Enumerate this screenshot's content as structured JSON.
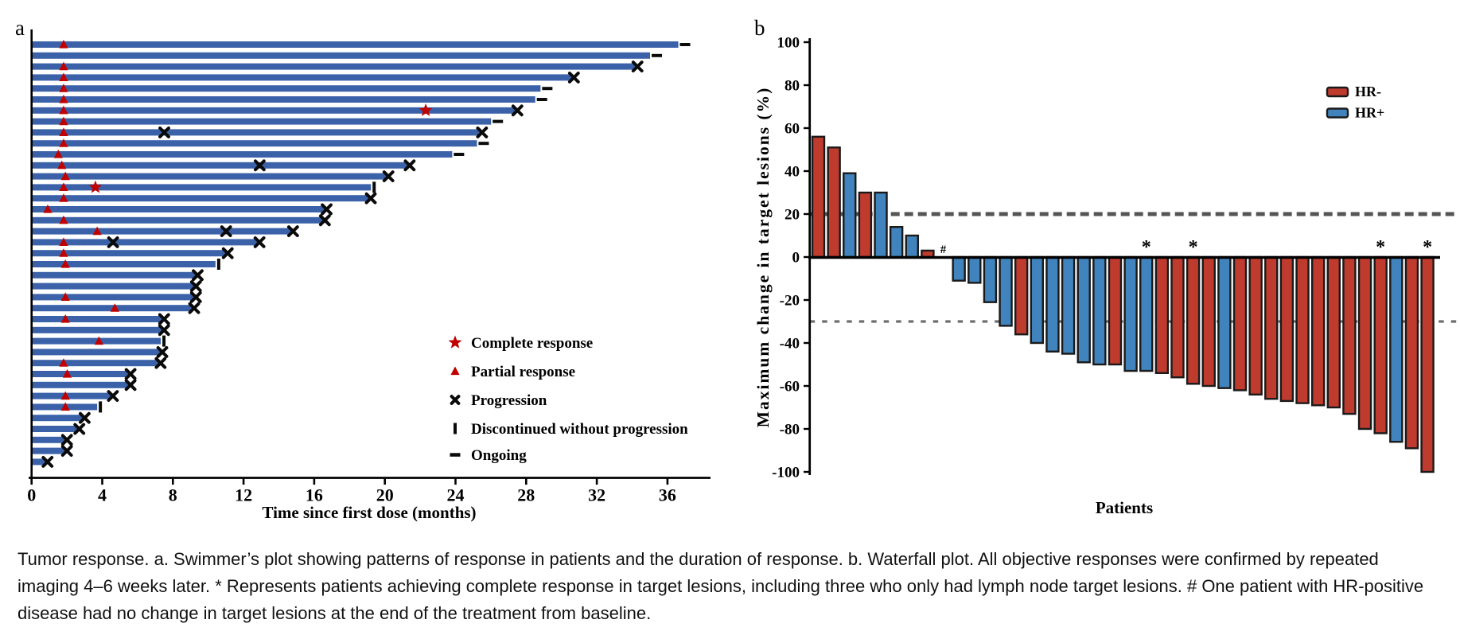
{
  "figure": {
    "panel_a_label": "a",
    "panel_b_label": "b",
    "caption": "Tumor response. a. Swimmer’s plot showing patterns of response in patients and the duration of response. b. Waterfall plot. All objective responses were confirmed by repeated imaging 4–6 weeks later. * Represents patients achieving complete response in target lesions, including three who only had lymph node target lesions. # One patient with HR-positive disease had no change in target lesions at the end of the treatment from baseline."
  },
  "colors": {
    "swimmer_bar": "#3B62A9",
    "marker_red": "#C00000",
    "marker_black": "#0A0A0A",
    "hr_negative": "#BE3B2E",
    "hr_positive": "#4183BC",
    "bar_outline": "#1A1A1A",
    "ref_line_upper": "#555555",
    "ref_line_lower": "#6E6E6E"
  },
  "chart_data": [
    {
      "type": "bar",
      "subtype": "swimmer",
      "orientation": "horizontal",
      "xlabel": "Time since first dose (months)",
      "xticks": [
        0,
        4,
        8,
        12,
        16,
        20,
        24,
        28,
        32,
        36
      ],
      "xlim": [
        0,
        38.5
      ],
      "legend": [
        {
          "symbol": "star",
          "label": "Complete response"
        },
        {
          "symbol": "triangle",
          "label": "Partial response"
        },
        {
          "symbol": "x",
          "label": "Progression"
        },
        {
          "symbol": "vbar",
          "label": "Discontinued without progression"
        },
        {
          "symbol": "dash",
          "label": "Ongoing"
        }
      ],
      "patients": [
        {
          "months": 36.6,
          "end": "ongoing",
          "events": [
            {
              "type": "PR",
              "month": 1.8
            }
          ]
        },
        {
          "months": 35.0,
          "end": "ongoing",
          "events": []
        },
        {
          "months": 34.2,
          "end": "PD",
          "events": [
            {
              "type": "PR",
              "month": 1.8
            }
          ]
        },
        {
          "months": 30.6,
          "end": "PD",
          "events": [
            {
              "type": "PR",
              "month": 1.8
            }
          ]
        },
        {
          "months": 28.8,
          "end": "ongoing",
          "events": [
            {
              "type": "PR",
              "month": 1.8
            }
          ]
        },
        {
          "months": 28.5,
          "end": "ongoing",
          "events": [
            {
              "type": "PR",
              "month": 1.8
            }
          ]
        },
        {
          "months": 27.4,
          "end": "PD",
          "events": [
            {
              "type": "PR",
              "month": 1.8
            },
            {
              "type": "CR",
              "month": 22.3
            }
          ]
        },
        {
          "months": 26.0,
          "end": "ongoing",
          "events": [
            {
              "type": "PR",
              "month": 1.8
            }
          ]
        },
        {
          "months": 25.4,
          "end": "PD",
          "events": [
            {
              "type": "PR",
              "month": 1.8
            },
            {
              "type": "PD",
              "month": 7.5
            }
          ]
        },
        {
          "months": 25.2,
          "end": "ongoing",
          "events": [
            {
              "type": "PR",
              "month": 1.8
            }
          ]
        },
        {
          "months": 23.8,
          "end": "ongoing",
          "events": [
            {
              "type": "PR",
              "month": 1.5
            }
          ]
        },
        {
          "months": 21.3,
          "end": "PD",
          "events": [
            {
              "type": "PR",
              "month": 1.7
            },
            {
              "type": "PD",
              "month": 12.9
            }
          ]
        },
        {
          "months": 20.1,
          "end": "PD",
          "events": [
            {
              "type": "PR",
              "month": 1.9
            }
          ]
        },
        {
          "months": 19.2,
          "end": "discontinued",
          "events": [
            {
              "type": "PR",
              "month": 1.8
            },
            {
              "type": "CR",
              "month": 3.6
            }
          ]
        },
        {
          "months": 19.1,
          "end": "PD",
          "events": [
            {
              "type": "PR",
              "month": 1.8
            }
          ]
        },
        {
          "months": 16.6,
          "end": "PD",
          "events": [
            {
              "type": "PR",
              "month": 0.9
            }
          ]
        },
        {
          "months": 16.5,
          "end": "PD",
          "events": [
            {
              "type": "PR",
              "month": 1.8
            }
          ]
        },
        {
          "months": 14.7,
          "end": "PD",
          "events": [
            {
              "type": "PR",
              "month": 3.7
            },
            {
              "type": "PD",
              "month": 11.0
            }
          ]
        },
        {
          "months": 12.8,
          "end": "PD",
          "events": [
            {
              "type": "PR",
              "month": 1.8
            },
            {
              "type": "PD",
              "month": 4.6
            }
          ]
        },
        {
          "months": 11.0,
          "end": "PD",
          "events": [
            {
              "type": "PR",
              "month": 1.8
            }
          ]
        },
        {
          "months": 10.4,
          "end": "discontinued",
          "events": [
            {
              "type": "PR",
              "month": 1.9
            }
          ]
        },
        {
          "months": 9.3,
          "end": "PD",
          "events": []
        },
        {
          "months": 9.2,
          "end": "PD",
          "events": []
        },
        {
          "months": 9.2,
          "end": "PD",
          "events": [
            {
              "type": "PR",
              "month": 1.9
            }
          ]
        },
        {
          "months": 9.1,
          "end": "PD",
          "events": [
            {
              "type": "PR",
              "month": 4.7
            }
          ]
        },
        {
          "months": 7.4,
          "end": "PD",
          "events": [
            {
              "type": "PR",
              "month": 1.9
            }
          ]
        },
        {
          "months": 7.4,
          "end": "PD",
          "events": []
        },
        {
          "months": 7.3,
          "end": "discontinued",
          "events": [
            {
              "type": "PR",
              "month": 3.8
            }
          ]
        },
        {
          "months": 7.3,
          "end": "PD",
          "events": []
        },
        {
          "months": 7.2,
          "end": "PD",
          "events": [
            {
              "type": "PR",
              "month": 1.8
            }
          ]
        },
        {
          "months": 5.5,
          "end": "PD",
          "events": [
            {
              "type": "PR",
              "month": 2.0
            }
          ]
        },
        {
          "months": 5.5,
          "end": "PD",
          "events": []
        },
        {
          "months": 4.5,
          "end": "PD",
          "events": [
            {
              "type": "PR",
              "month": 1.9
            }
          ]
        },
        {
          "months": 3.7,
          "end": "discontinued",
          "events": [
            {
              "type": "PR",
              "month": 1.9
            }
          ]
        },
        {
          "months": 2.9,
          "end": "PD",
          "events": []
        },
        {
          "months": 2.6,
          "end": "PD",
          "events": []
        },
        {
          "months": 1.9,
          "end": "PD",
          "events": []
        },
        {
          "months": 1.9,
          "end": "PD",
          "events": []
        },
        {
          "months": 0.8,
          "end": "PD",
          "events": []
        }
      ]
    },
    {
      "type": "bar",
      "subtype": "waterfall",
      "ylabel": "Maximum change in target lesions (%)",
      "xlabel": "Patients",
      "ylim": [
        -100,
        100
      ],
      "yticks": [
        100,
        80,
        60,
        40,
        20,
        0,
        -20,
        -40,
        -60,
        -80,
        -100
      ],
      "dashed_reference_lines": [
        20,
        -30
      ],
      "legend": [
        {
          "label": "HR-",
          "group": "HR-"
        },
        {
          "label": "HR+",
          "group": "HR+"
        }
      ],
      "bars": [
        {
          "value": 56,
          "group": "HR-"
        },
        {
          "value": 51,
          "group": "HR-"
        },
        {
          "value": 39,
          "group": "HR+"
        },
        {
          "value": 30,
          "group": "HR-"
        },
        {
          "value": 30,
          "group": "HR+"
        },
        {
          "value": 14,
          "group": "HR+"
        },
        {
          "value": 10,
          "group": "HR+"
        },
        {
          "value": 3,
          "group": "HR-"
        },
        {
          "value": 0,
          "group": "HR+",
          "mark": "#"
        },
        {
          "value": -11,
          "group": "HR+"
        },
        {
          "value": -12,
          "group": "HR+"
        },
        {
          "value": -21,
          "group": "HR+"
        },
        {
          "value": -32,
          "group": "HR+"
        },
        {
          "value": -36,
          "group": "HR-"
        },
        {
          "value": -40,
          "group": "HR+"
        },
        {
          "value": -44,
          "group": "HR+"
        },
        {
          "value": -45,
          "group": "HR+"
        },
        {
          "value": -49,
          "group": "HR+"
        },
        {
          "value": -50,
          "group": "HR+"
        },
        {
          "value": -50,
          "group": "HR-"
        },
        {
          "value": -53,
          "group": "HR+"
        },
        {
          "value": -53,
          "group": "HR+",
          "mark": "*"
        },
        {
          "value": -54,
          "group": "HR-"
        },
        {
          "value": -56,
          "group": "HR-"
        },
        {
          "value": -59,
          "group": "HR-",
          "mark": "*"
        },
        {
          "value": -60,
          "group": "HR-"
        },
        {
          "value": -61,
          "group": "HR+"
        },
        {
          "value": -62,
          "group": "HR-"
        },
        {
          "value": -64,
          "group": "HR-"
        },
        {
          "value": -66,
          "group": "HR-"
        },
        {
          "value": -67,
          "group": "HR-"
        },
        {
          "value": -68,
          "group": "HR-"
        },
        {
          "value": -69,
          "group": "HR-"
        },
        {
          "value": -70,
          "group": "HR-"
        },
        {
          "value": -73,
          "group": "HR-"
        },
        {
          "value": -80,
          "group": "HR-"
        },
        {
          "value": -82,
          "group": "HR-",
          "mark": "*"
        },
        {
          "value": -86,
          "group": "HR+"
        },
        {
          "value": -89,
          "group": "HR-"
        },
        {
          "value": -100,
          "group": "HR-",
          "mark": "*"
        }
      ]
    }
  ]
}
